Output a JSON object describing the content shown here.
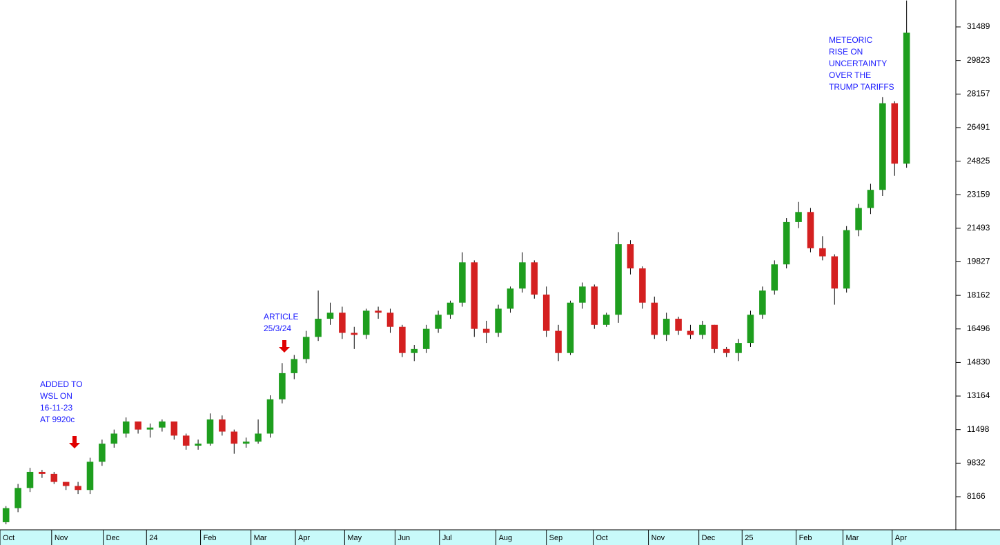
{
  "chart_data": {
    "type": "candlestick",
    "up_color": "#1e9e1e",
    "down_color": "#d42020",
    "wick_color": "#000000",
    "xlim": [
      0,
      79.6
    ],
    "xticks": [
      {
        "value": 0,
        "label": "Oct"
      },
      {
        "value": 4.3,
        "label": "Nov"
      },
      {
        "value": 8.6,
        "label": "Dec"
      },
      {
        "value": 12.2,
        "label": "24"
      },
      {
        "value": 16.7,
        "label": "Feb"
      },
      {
        "value": 20.9,
        "label": "Mar"
      },
      {
        "value": 24.6,
        "label": "Apr"
      },
      {
        "value": 28.7,
        "label": "May"
      },
      {
        "value": 32.9,
        "label": "Jun"
      },
      {
        "value": 36.6,
        "label": "Jul"
      },
      {
        "value": 41.3,
        "label": "Aug"
      },
      {
        "value": 45.5,
        "label": "Sep"
      },
      {
        "value": 49.4,
        "label": "Oct"
      },
      {
        "value": 54,
        "label": "Nov"
      },
      {
        "value": 58.2,
        "label": "Dec"
      },
      {
        "value": 61.8,
        "label": "25"
      },
      {
        "value": 66.3,
        "label": "Feb"
      },
      {
        "value": 70.2,
        "label": "Mar"
      },
      {
        "value": 74.3,
        "label": "Apr"
      }
    ],
    "ylim": [
      6522,
      32825
    ],
    "yticks": [
      8166,
      9832,
      11498,
      13164,
      14830,
      16496,
      18162,
      19827,
      21493,
      23159,
      24825,
      26491,
      28157,
      29823,
      31489
    ],
    "open": [
      6900,
      7600,
      8600,
      9400,
      9300,
      8900,
      8700,
      8500,
      9900,
      10800,
      11300,
      11900,
      11500,
      11600,
      11900,
      11200,
      10700,
      10800,
      12000,
      11400,
      10800,
      10900,
      11300,
      13000,
      14300,
      15000,
      16100,
      17000,
      17300,
      16300,
      16200,
      17400,
      17300,
      16600,
      15300,
      15500,
      16500,
      17200,
      17800,
      19800,
      16500,
      16300,
      17500,
      18500,
      19800,
      18200,
      16400,
      15300,
      17800,
      18600,
      16700,
      17200,
      20700,
      19500,
      17800,
      16200,
      17000,
      16400,
      16200,
      16700,
      15500,
      15300,
      15800,
      17200,
      18400,
      19700,
      21800,
      22300,
      20500,
      20100,
      18500,
      21400,
      22500,
      23400,
      27700,
      24700
    ],
    "high": [
      7700,
      8800,
      9600,
      9500,
      9400,
      8900,
      8900,
      10100,
      11000,
      11500,
      12100,
      11900,
      11800,
      12000,
      11900,
      11300,
      11000,
      12300,
      12200,
      11500,
      11100,
      12000,
      13200,
      14800,
      15200,
      16400,
      18400,
      17800,
      17600,
      16600,
      17500,
      17600,
      17500,
      16700,
      15700,
      16700,
      17400,
      17900,
      20300,
      19900,
      16900,
      17700,
      18600,
      20300,
      19900,
      18600,
      16700,
      17900,
      18800,
      18700,
      17300,
      21300,
      20900,
      19600,
      18100,
      17300,
      17100,
      16700,
      16900,
      16700,
      15600,
      16000,
      17400,
      18600,
      19900,
      22000,
      22800,
      22500,
      21100,
      20200,
      21600,
      22700,
      23700,
      28000,
      27800,
      32800
    ],
    "low": [
      6800,
      7400,
      8400,
      9100,
      8800,
      8500,
      8300,
      8300,
      9700,
      10600,
      11100,
      11300,
      11100,
      11400,
      11000,
      10500,
      10500,
      10700,
      11200,
      10300,
      10600,
      10800,
      11100,
      12800,
      14000,
      14800,
      15900,
      16700,
      16000,
      15500,
      16000,
      17000,
      16300,
      15100,
      14900,
      15300,
      16300,
      17000,
      17600,
      16100,
      15800,
      16100,
      17300,
      18300,
      18000,
      16100,
      14900,
      15200,
      17500,
      16500,
      16600,
      16800,
      19200,
      17500,
      16000,
      15900,
      16200,
      16000,
      16000,
      15300,
      15100,
      14900,
      15600,
      17000,
      18200,
      19500,
      21500,
      20300,
      19900,
      17700,
      18300,
      21100,
      22200,
      23100,
      24100,
      24500
    ],
    "close": [
      7600,
      8600,
      9400,
      9300,
      8900,
      8700,
      8500,
      9900,
      10800,
      11300,
      11900,
      11500,
      11600,
      11900,
      11200,
      10700,
      10800,
      12000,
      11400,
      10800,
      10900,
      11300,
      13000,
      14300,
      15000,
      16100,
      17000,
      17300,
      16300,
      16200,
      17400,
      17300,
      16600,
      15300,
      15500,
      16500,
      17200,
      17800,
      19800,
      16500,
      16300,
      17500,
      18500,
      19800,
      18200,
      16400,
      15300,
      17800,
      18600,
      16700,
      17200,
      20700,
      19500,
      17800,
      16200,
      17000,
      16400,
      16200,
      16700,
      15500,
      15300,
      15800,
      17200,
      18400,
      19700,
      21800,
      22300,
      20500,
      20100,
      18500,
      21400,
      22500,
      23400,
      27700,
      24700,
      31200
    ],
    "annotations": [
      {
        "lines": [
          "ADDED TO",
          "WSL ON",
          "16-11-23",
          "AT 9920c"
        ]
      },
      {
        "lines": [
          "ARTICLE",
          "25/3/24"
        ]
      },
      {
        "lines": [
          "METEORIC",
          "RISE ON",
          "UNCERTAINTY",
          "OVER THE",
          "TRUMP TARIFFS"
        ]
      }
    ]
  }
}
